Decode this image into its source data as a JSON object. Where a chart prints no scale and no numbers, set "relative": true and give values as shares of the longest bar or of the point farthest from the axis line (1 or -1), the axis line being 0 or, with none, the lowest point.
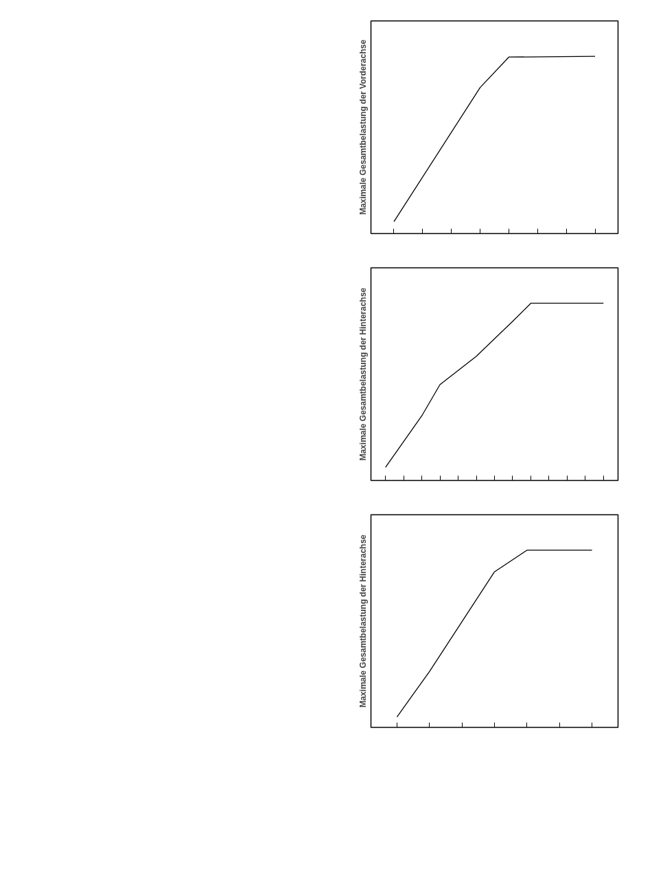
{
  "chart_data": [
    {
      "type": "line",
      "relative": true,
      "ylabel": "Maximale Gesamtbelastung der Vorderachse",
      "categories": [
        null,
        null,
        null,
        null,
        null,
        null,
        null,
        null
      ],
      "series": [
        {
          "color": "#000000",
          "values": [
            0.067,
            null,
            null,
            0.824,
            0.996,
            null,
            null,
            1.0
          ]
        }
      ],
      "grid": false
    },
    {
      "type": "line",
      "relative": true,
      "ylabel": "Maximale Gesamtbelastung der Hinterachse",
      "categories": [
        null,
        null,
        null,
        null,
        null,
        null,
        null,
        null,
        null,
        null,
        null,
        null,
        null
      ],
      "series": [
        {
          "color": "#000000",
          "values": [
            0.074,
            null,
            0.365,
            0.541,
            null,
            0.701,
            null,
            0.898,
            1.0,
            null,
            null,
            null,
            1.0
          ]
        }
      ],
      "grid": false
    },
    {
      "type": "line",
      "relative": true,
      "ylabel": "Maximale Gesamtbelastung der Hinterachse",
      "categories": [
        null,
        null,
        null,
        null,
        null,
        null,
        null
      ],
      "series": [
        {
          "color": "#000000",
          "values": [
            0.059,
            0.315,
            null,
            0.878,
            1.0,
            null,
            1.0
          ]
        }
      ],
      "grid": false
    }
  ]
}
